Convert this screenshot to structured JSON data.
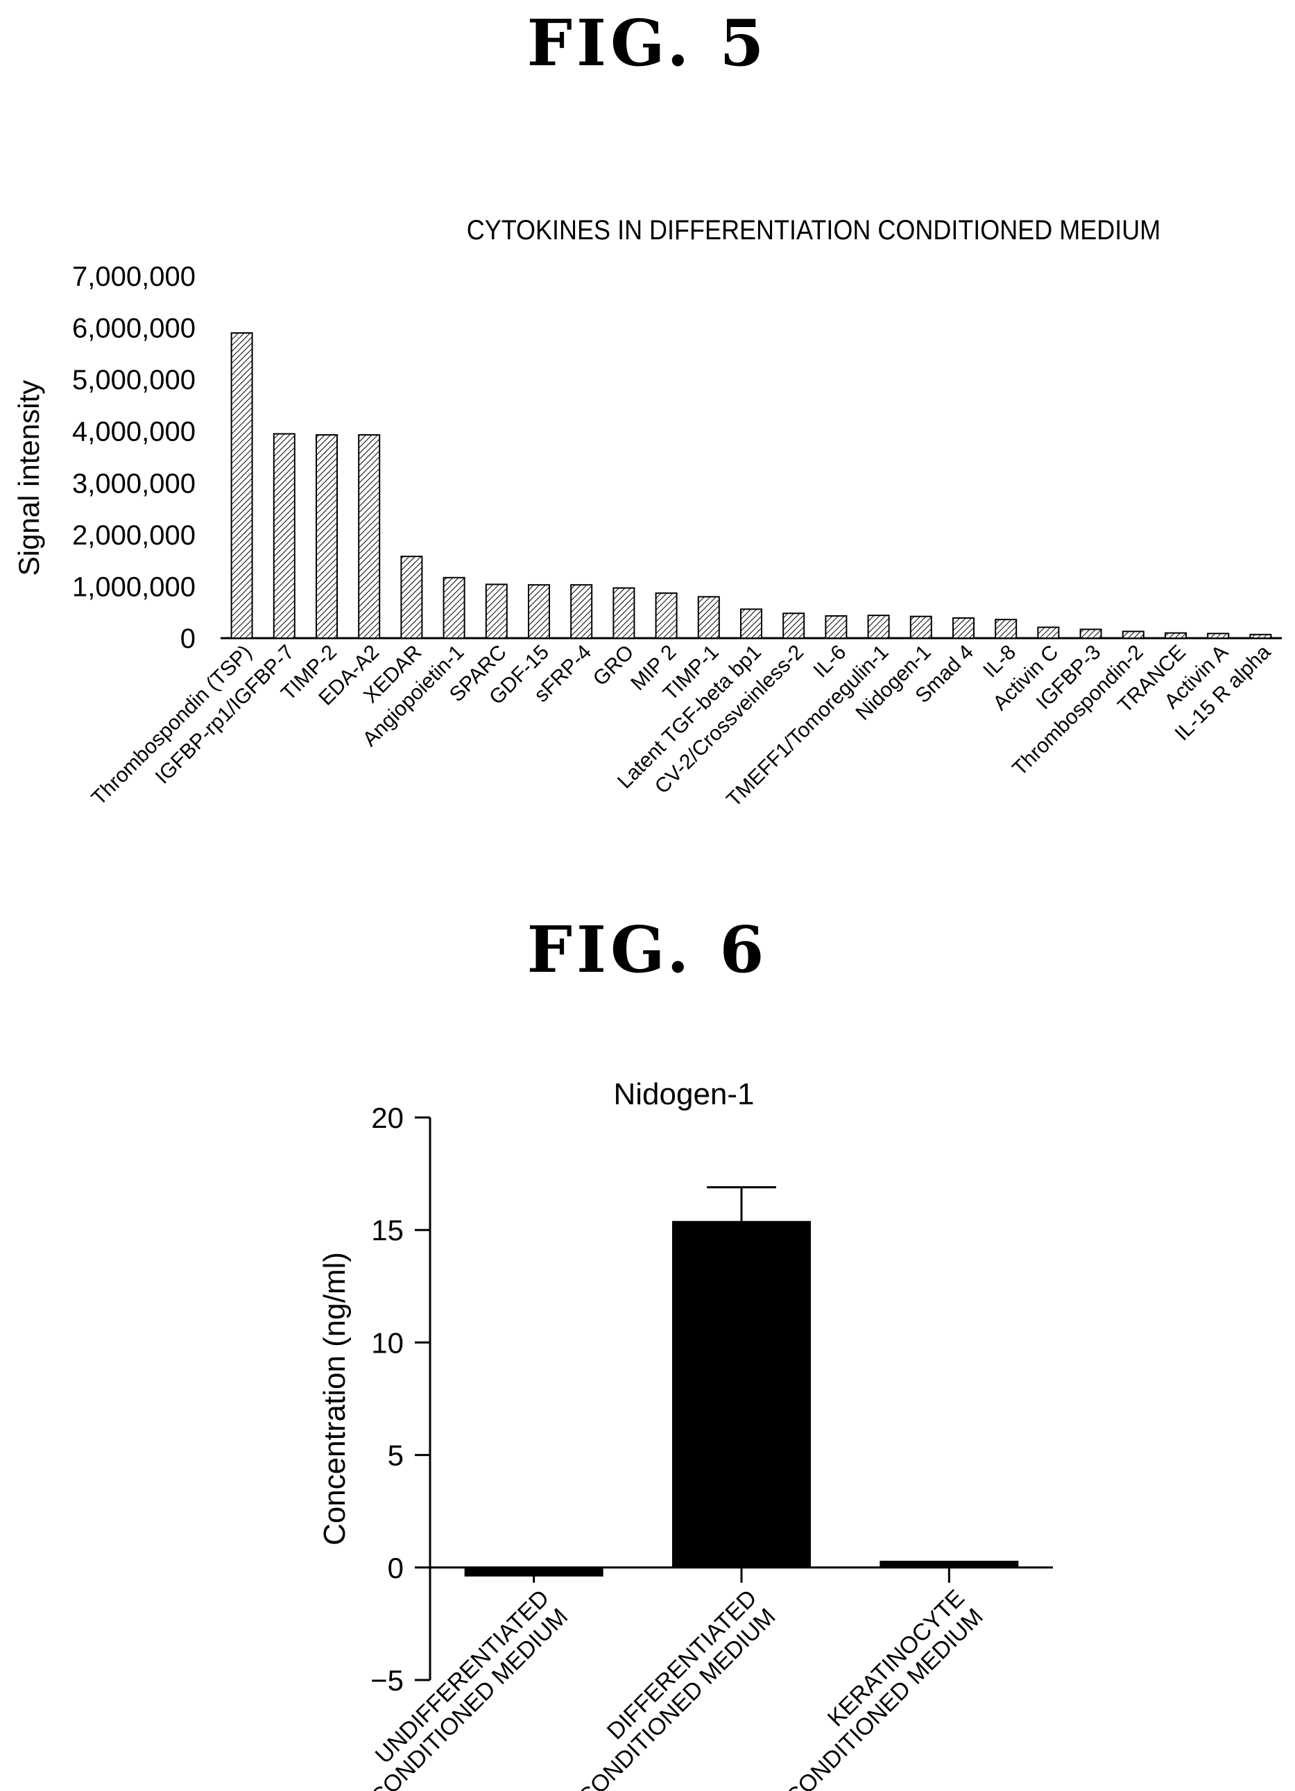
{
  "figures": [
    {
      "label": "FIG. 5"
    },
    {
      "label": "FIG. 6"
    }
  ],
  "chart_data": [
    {
      "type": "bar",
      "title": "CYTOKINES IN DIFFERENTIATION CONDITIONED MEDIUM",
      "xlabel": "",
      "ylabel": "Signal intensity",
      "ylim": [
        0,
        7000000
      ],
      "yticks": [
        0,
        1000000,
        2000000,
        3000000,
        4000000,
        5000000,
        6000000,
        7000000
      ],
      "ytick_labels": [
        "0",
        "1,000,000",
        "2,000,000",
        "3,000,000",
        "4,000,000",
        "5,000,000",
        "6,000,000",
        "7,000,000"
      ],
      "grid": false,
      "bar_fill": "hatched",
      "categories": [
        "Thrombospondin (TSP)",
        "IGFBP-rp1/IGFBP-7",
        "TIMP-2",
        "EDA-A2",
        "XEDAR",
        "Angiopoietin-1",
        "SPARC",
        "GDF-15",
        "sFRP-4",
        "GRO",
        "MIP 2",
        "TIMP-1",
        "Latent TGF-beta bp1",
        "CV-2/Crossveinless-2",
        "IL-6",
        "TMEFF1/Tomoregulin-1",
        "Nidogen-1",
        "Smad 4",
        "IL-8",
        "Activin C",
        "IGFBP-3",
        "Thrombospondin-2",
        "TRANCE",
        "Activin A",
        "IL-15 R alpha"
      ],
      "values": [
        5900000,
        3950000,
        3930000,
        3930000,
        1580000,
        1170000,
        1040000,
        1030000,
        1030000,
        970000,
        870000,
        800000,
        560000,
        480000,
        430000,
        440000,
        420000,
        390000,
        360000,
        210000,
        170000,
        130000,
        100000,
        90000,
        70000
      ]
    },
    {
      "type": "bar",
      "title": "Nidogen-1",
      "xlabel": "",
      "ylabel": "Concentration (ng/ml)",
      "ylim": [
        -5,
        20
      ],
      "yticks": [
        -5,
        0,
        5,
        10,
        15,
        20
      ],
      "grid": false,
      "bar_color": "#000000",
      "categories": [
        [
          "UNDIFFERENTIATED",
          "CONDITIONED MEDIUM"
        ],
        [
          "DIFFERENTIATED",
          "CONDITIONED MEDIUM"
        ],
        [
          "KERATINOCYTE",
          "CONDITIONED MEDIUM"
        ]
      ],
      "values": [
        -0.4,
        15.4,
        0.3
      ],
      "error": [
        0,
        1.5,
        0
      ]
    }
  ]
}
